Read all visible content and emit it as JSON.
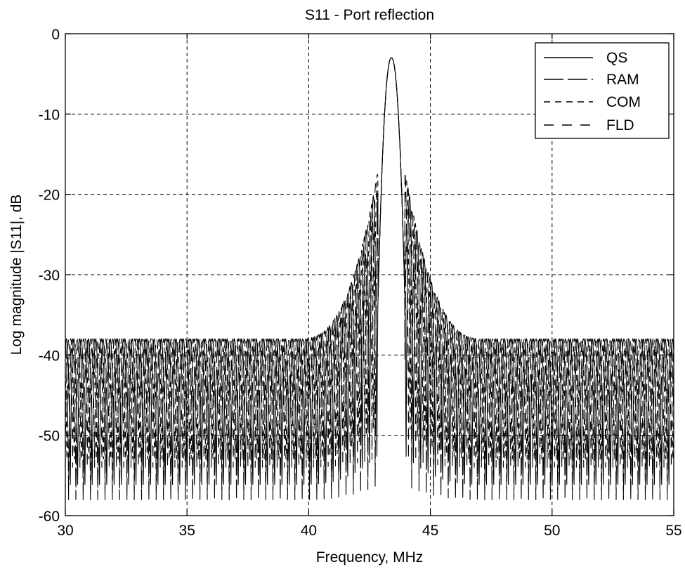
{
  "chart_data": {
    "type": "line",
    "title": "S11 - Port reflection",
    "xlabel": "Frequency, MHz",
    "ylabel": "Log magnitude |S11|, dB",
    "xlim": [
      30,
      55
    ],
    "ylim": [
      -60,
      0
    ],
    "x_ticks": [
      30,
      35,
      40,
      45,
      50,
      55
    ],
    "y_ticks": [
      0,
      -10,
      -20,
      -30,
      -40,
      -50,
      -60
    ],
    "grid": true,
    "legend_position": "top-right",
    "center_freq": 43.4,
    "peak_db": -3,
    "series": [
      {
        "name": "QS",
        "dash": "solid",
        "sidelobe_envelope_db": -38,
        "null_floor_db": -60
      },
      {
        "name": "RAM",
        "dash": "long",
        "sidelobe_envelope_db": -38,
        "null_floor_db": -60
      },
      {
        "name": "COM",
        "dash": "short",
        "sidelobe_envelope_db": -38,
        "null_floor_db": -57
      },
      {
        "name": "FLD",
        "dash": "medium",
        "sidelobe_envelope_db": -38,
        "null_floor_db": -55
      }
    ]
  }
}
